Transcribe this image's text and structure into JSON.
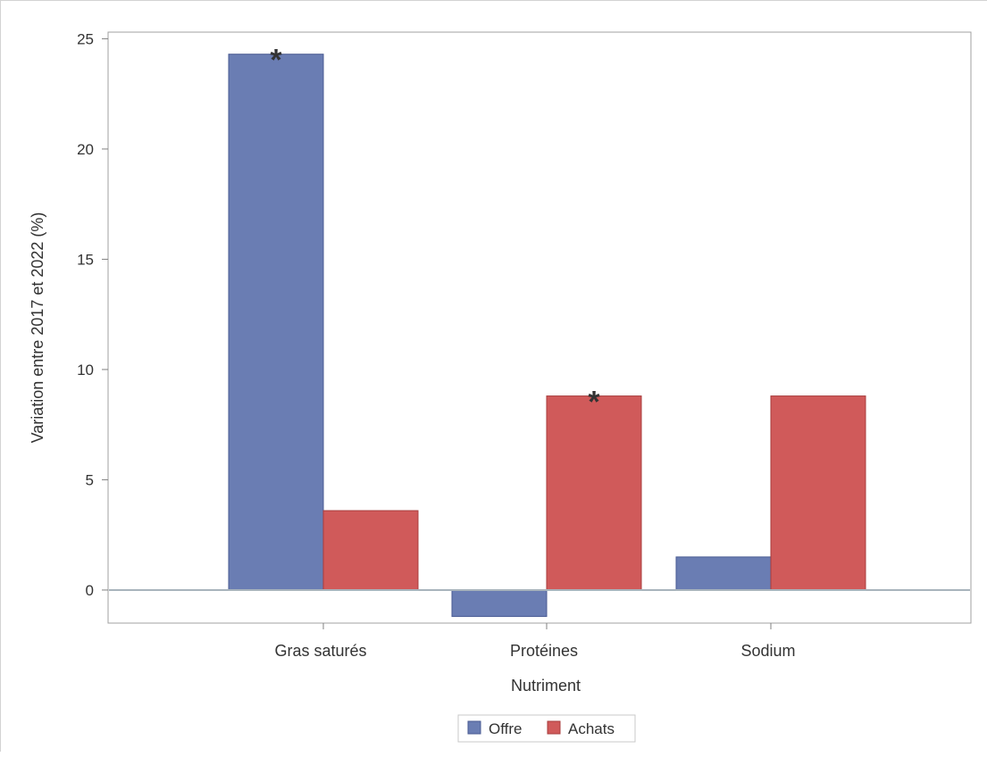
{
  "chart_data": {
    "type": "bar",
    "title": "",
    "xlabel": "Nutriment",
    "ylabel": "Variation entre 2017 et 2022 (%)",
    "categories": [
      "Gras saturés",
      "Protéines",
      "Sodium"
    ],
    "series": [
      {
        "name": "Offre",
        "color": "#6a7db3",
        "values": [
          24.3,
          -1.2,
          1.5
        ]
      },
      {
        "name": "Achats",
        "color": "#d05a5a",
        "values": [
          3.6,
          8.8,
          8.8
        ]
      }
    ],
    "ylim": [
      -1.5,
      25.3
    ],
    "yticks": [
      0,
      5,
      10,
      15,
      20,
      25
    ],
    "annotations": [
      {
        "text": "*",
        "series": 0,
        "category": 0
      },
      {
        "text": "*",
        "series": 1,
        "category": 1
      }
    ],
    "grid": false,
    "legend_position": "bottom-center"
  }
}
